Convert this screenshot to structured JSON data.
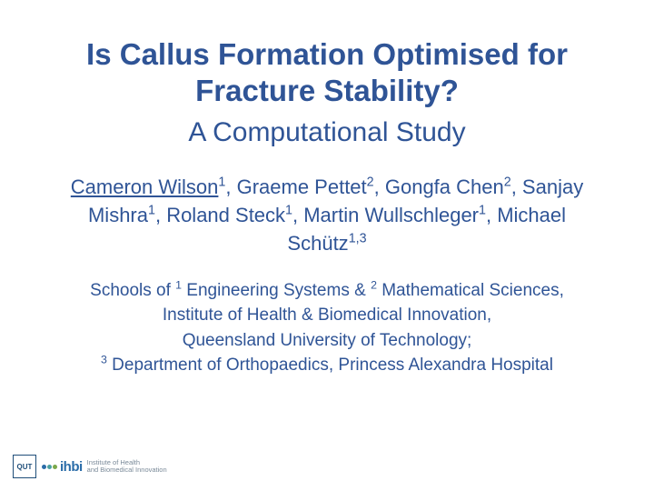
{
  "colors": {
    "text": "#2f5496",
    "subtext": "#2f5496",
    "logo_border": "#1f4e79",
    "dot_blue": "#2a6ca8",
    "dot_teal": "#4aa0a0",
    "dot_green": "#7aa84a",
    "ihbi_text": "#2a6ca8",
    "ihbi_sub": "#7a8a99",
    "bg": "#ffffff"
  },
  "fonts": {
    "title_size": 33,
    "subtitle_size": 30,
    "authors_size": 22,
    "affil_size": 19
  },
  "title": "Is Callus Formation Optimised for Fracture Stability?",
  "subtitle": "A Computational Study",
  "authors": [
    {
      "name": "Cameron Wilson",
      "sup": "1",
      "underline": true
    },
    {
      "name": "Graeme Pettet",
      "sup": "2"
    },
    {
      "name": "Gongfa Chen",
      "sup": "2"
    },
    {
      "name": "Sanjay Mishra",
      "sup": "1"
    },
    {
      "name": "Roland Steck",
      "sup": "1"
    },
    {
      "name": "Martin Wullschleger",
      "sup": "1"
    },
    {
      "name": "Michael Schütz",
      "sup": "1,3"
    }
  ],
  "affiliations": {
    "line1_prefix": "Schools of ",
    "sup1": "1",
    "school1": " Engineering Systems & ",
    "sup2": "2",
    "school2": " Mathematical Sciences,",
    "line2": "Institute of Health & Biomedical Innovation,",
    "line3": "Queensland University of Technology;",
    "sup3": "3",
    "line4": " Department of Orthopaedics, Princess Alexandra Hospital"
  },
  "logo": {
    "qut": "QUT",
    "ihbi": "ihbi",
    "sub1": "Institute of Health",
    "sub2": "and Biomedical Innovation"
  }
}
